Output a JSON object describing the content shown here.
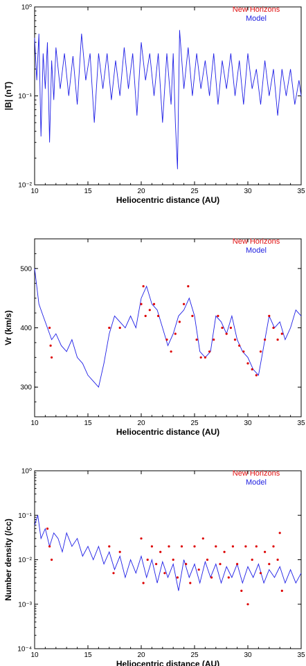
{
  "colors": {
    "new_horizons": "#dd0000",
    "model": "#1e1ee6",
    "axis": "#000000"
  },
  "chart_data": [
    {
      "type": "line",
      "xlabel": "Heliocentric distance (AU)",
      "ylabel": "|B| (nT)",
      "xlim": [
        10,
        35
      ],
      "ylim": [
        0.01,
        1
      ],
      "yscale": "log",
      "x_ticks": [
        "10",
        "15",
        "20",
        "25",
        "30",
        "35"
      ],
      "y_ticks": [
        "10⁻²",
        "10⁻¹",
        "10⁰"
      ],
      "grid": false,
      "legend": [
        "New Horizons",
        "Model"
      ],
      "legend_position": "top-right",
      "series": [
        {
          "name": "Model",
          "style": "line",
          "x": [
            10.0,
            10.2,
            10.4,
            10.6,
            10.8,
            11.0,
            11.2,
            11.4,
            11.6,
            11.8,
            12.0,
            12.4,
            12.8,
            13.2,
            13.6,
            14.0,
            14.4,
            14.8,
            15.2,
            15.6,
            16.0,
            16.4,
            16.8,
            17.2,
            17.6,
            18.0,
            18.4,
            18.8,
            19.2,
            19.6,
            20.0,
            20.4,
            20.8,
            21.2,
            21.6,
            22.0,
            22.4,
            22.8,
            23.0,
            23.2,
            23.4,
            23.6,
            24.0,
            24.4,
            24.8,
            25.2,
            25.6,
            26.0,
            26.4,
            26.8,
            27.2,
            27.6,
            28.0,
            28.4,
            28.8,
            29.2,
            29.6,
            30.0,
            30.4,
            30.8,
            31.2,
            31.6,
            32.0,
            32.4,
            32.8,
            33.2,
            33.6,
            34.0,
            34.4,
            34.8,
            35.0
          ],
          "y": [
            0.45,
            0.15,
            0.5,
            0.035,
            0.3,
            0.12,
            0.4,
            0.03,
            0.25,
            0.09,
            0.35,
            0.12,
            0.3,
            0.1,
            0.28,
            0.08,
            0.5,
            0.15,
            0.3,
            0.05,
            0.3,
            0.12,
            0.3,
            0.09,
            0.25,
            0.1,
            0.35,
            0.12,
            0.3,
            0.06,
            0.4,
            0.15,
            0.3,
            0.1,
            0.3,
            0.05,
            0.3,
            0.08,
            0.3,
            0.05,
            0.015,
            0.55,
            0.12,
            0.35,
            0.1,
            0.3,
            0.12,
            0.25,
            0.1,
            0.3,
            0.08,
            0.25,
            0.12,
            0.3,
            0.1,
            0.25,
            0.08,
            0.3,
            0.12,
            0.2,
            0.08,
            0.25,
            0.1,
            0.2,
            0.06,
            0.2,
            0.1,
            0.2,
            0.08,
            0.15,
            0.1
          ]
        }
      ]
    },
    {
      "type": "line",
      "xlabel": "Heliocentric distance (AU)",
      "ylabel": "Vr (km/s)",
      "xlim": [
        10,
        35
      ],
      "ylim": [
        250,
        550
      ],
      "yscale": "linear",
      "x_ticks": [
        "10",
        "15",
        "20",
        "25",
        "30",
        "35"
      ],
      "y_ticks": [
        "300",
        "400",
        "500"
      ],
      "grid": false,
      "legend": [
        "New Horizons",
        "Model"
      ],
      "legend_position": "top-right",
      "series": [
        {
          "name": "Model",
          "style": "line",
          "x": [
            10.0,
            10.4,
            10.8,
            11.2,
            11.6,
            12.0,
            12.5,
            13.0,
            13.5,
            14.0,
            14.5,
            15.0,
            15.5,
            16.0,
            16.5,
            17.0,
            17.5,
            18.0,
            18.5,
            19.0,
            19.5,
            20.0,
            20.5,
            21.0,
            21.5,
            22.0,
            22.5,
            23.0,
            23.5,
            24.0,
            24.5,
            25.0,
            25.5,
            26.0,
            26.5,
            27.0,
            27.5,
            28.0,
            28.5,
            29.0,
            29.5,
            30.0,
            30.5,
            31.0,
            31.5,
            32.0,
            32.5,
            33.0,
            33.5,
            34.0,
            34.5,
            35.0
          ],
          "y": [
            500,
            440,
            420,
            400,
            380,
            390,
            370,
            360,
            380,
            350,
            340,
            320,
            310,
            300,
            340,
            390,
            420,
            410,
            400,
            420,
            400,
            450,
            470,
            440,
            430,
            400,
            370,
            390,
            420,
            430,
            450,
            420,
            360,
            350,
            360,
            420,
            410,
            390,
            420,
            380,
            360,
            350,
            330,
            320,
            370,
            420,
            400,
            410,
            380,
            400,
            430,
            420
          ]
        },
        {
          "name": "New Horizons",
          "style": "dots",
          "x": [
            11.4,
            11.5,
            11.6,
            17.0,
            18.0,
            20.0,
            20.2,
            20.4,
            20.8,
            21.2,
            21.6,
            22.4,
            22.8,
            23.2,
            23.6,
            24.0,
            24.4,
            24.8,
            25.2,
            25.6,
            26.0,
            26.4,
            26.8,
            27.2,
            27.6,
            28.0,
            28.4,
            28.8,
            29.2,
            29.6,
            30.0,
            30.4,
            30.8,
            31.2,
            31.6,
            32.0,
            32.4,
            32.8,
            33.2
          ],
          "y": [
            400,
            370,
            350,
            400,
            400,
            440,
            470,
            420,
            430,
            440,
            420,
            380,
            360,
            390,
            410,
            440,
            470,
            420,
            380,
            350,
            350,
            360,
            380,
            420,
            400,
            390,
            400,
            380,
            370,
            360,
            340,
            330,
            320,
            360,
            380,
            420,
            400,
            380,
            390
          ]
        }
      ]
    },
    {
      "type": "line",
      "xlabel": "Heliocentric distance (AU)",
      "ylabel": "Number density (/cc)",
      "xlim": [
        10,
        35
      ],
      "ylim": [
        0.0001,
        1
      ],
      "yscale": "log",
      "x_ticks": [
        "10",
        "15",
        "20",
        "25",
        "30",
        "35"
      ],
      "y_ticks": [
        "10⁻⁴",
        "10⁻³",
        "10⁻²",
        "10⁻¹",
        "10⁰"
      ],
      "grid": false,
      "legend": [
        "New Horizons",
        "Model"
      ],
      "legend_position": "top-right",
      "series": [
        {
          "name": "Model",
          "style": "line",
          "x": [
            10.0,
            10.3,
            10.6,
            11.0,
            11.4,
            11.8,
            12.2,
            12.6,
            13.0,
            13.5,
            14.0,
            14.5,
            15.0,
            15.5,
            16.0,
            16.5,
            17.0,
            17.5,
            18.0,
            18.5,
            19.0,
            19.5,
            20.0,
            20.5,
            21.0,
            21.5,
            22.0,
            22.5,
            23.0,
            23.5,
            24.0,
            24.5,
            25.0,
            25.5,
            26.0,
            26.5,
            27.0,
            27.5,
            28.0,
            28.5,
            29.0,
            29.5,
            30.0,
            30.5,
            31.0,
            31.5,
            32.0,
            32.5,
            33.0,
            33.5,
            34.0,
            34.5,
            35.0
          ],
          "y": [
            0.06,
            0.1,
            0.03,
            0.05,
            0.02,
            0.04,
            0.03,
            0.015,
            0.04,
            0.02,
            0.03,
            0.012,
            0.02,
            0.01,
            0.02,
            0.008,
            0.015,
            0.006,
            0.012,
            0.004,
            0.01,
            0.005,
            0.012,
            0.004,
            0.01,
            0.003,
            0.009,
            0.004,
            0.008,
            0.002,
            0.01,
            0.004,
            0.008,
            0.003,
            0.009,
            0.004,
            0.008,
            0.003,
            0.007,
            0.004,
            0.008,
            0.003,
            0.007,
            0.004,
            0.008,
            0.003,
            0.006,
            0.004,
            0.007,
            0.003,
            0.006,
            0.003,
            0.005
          ]
        },
        {
          "name": "New Horizons",
          "style": "dots",
          "x": [
            11.2,
            11.4,
            11.6,
            17.0,
            17.4,
            18.0,
            20.0,
            20.2,
            20.6,
            21.0,
            21.4,
            21.8,
            22.2,
            22.6,
            23.0,
            23.4,
            23.8,
            24.2,
            24.6,
            25.0,
            25.4,
            25.8,
            26.2,
            26.6,
            27.0,
            27.4,
            27.8,
            28.2,
            28.6,
            29.0,
            29.4,
            29.8,
            30.0,
            30.4,
            30.8,
            31.2,
            31.6,
            32.0,
            32.4,
            32.8,
            33.0,
            33.2
          ],
          "y": [
            0.05,
            0.02,
            0.01,
            0.02,
            0.005,
            0.015,
            0.03,
            0.003,
            0.01,
            0.02,
            0.008,
            0.015,
            0.005,
            0.02,
            0.01,
            0.004,
            0.02,
            0.008,
            0.003,
            0.02,
            0.006,
            0.03,
            0.01,
            0.004,
            0.02,
            0.008,
            0.015,
            0.004,
            0.02,
            0.008,
            0.002,
            0.02,
            0.001,
            0.01,
            0.02,
            0.005,
            0.015,
            0.008,
            0.02,
            0.01,
            0.04,
            0.002
          ]
        }
      ]
    }
  ]
}
